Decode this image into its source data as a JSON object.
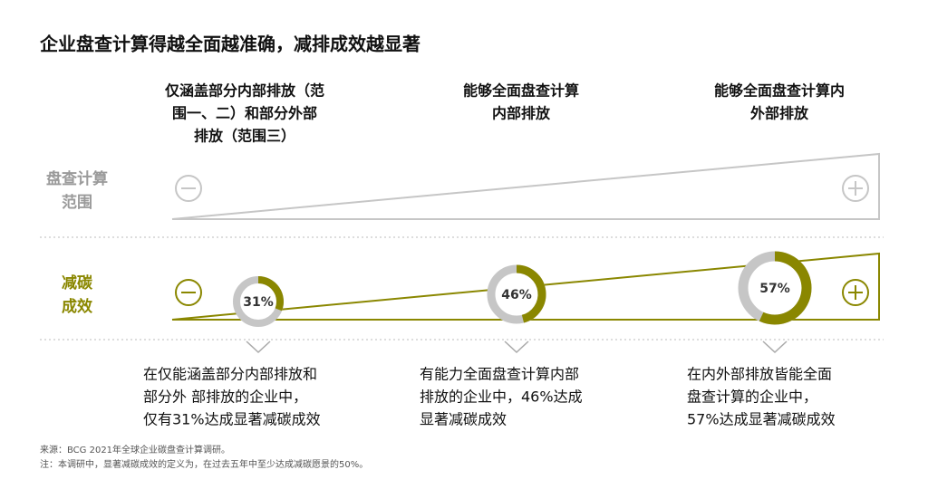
{
  "title": "企业盘查计算得越全面越准确，减排成效越显著",
  "rows": [
    {
      "label": [
        "盘查计算",
        "范围"
      ],
      "min": "⊖",
      "max": "⊕"
    },
    {
      "label": [
        "减碳",
        "成效"
      ],
      "min": "⊖",
      "max": "⊕"
    }
  ],
  "columns": [
    {
      "header": [
        "仅涵盖部分内部排放（范",
        "围一、二）和部分外部",
        "排放（范围三）"
      ],
      "value": 31,
      "value_label": "31%",
      "description": [
        "在仅能涵盖部分内部排放和",
        "部分外 部排放的企业中，",
        "仅有31%达成显著减碳成效"
      ]
    },
    {
      "header": [
        "能够全面盘查计算",
        "内部排放"
      ],
      "value": 46,
      "value_label": "46%",
      "description": [
        "有能力全面盘查计算内部",
        "排放的企业中，46%达成",
        "显著减碳成效"
      ]
    },
    {
      "header": [
        "能够全面盘查计算内",
        "外部排放"
      ],
      "value": 57,
      "value_label": "57%",
      "description": [
        "在内外部排放皆能全面",
        "盘查计算的企业中，",
        "57%达成显著减碳成效"
      ]
    }
  ],
  "notes": [
    "来源：BCG 2021年全球企业碳盘查计算调研。",
    "注：本调研中，显著减碳成效的定义为，在过去五年中至少达成减碳愿景的50%。"
  ],
  "colors": {
    "accent": "#8a8700",
    "muted": "#c6c6c6"
  }
}
